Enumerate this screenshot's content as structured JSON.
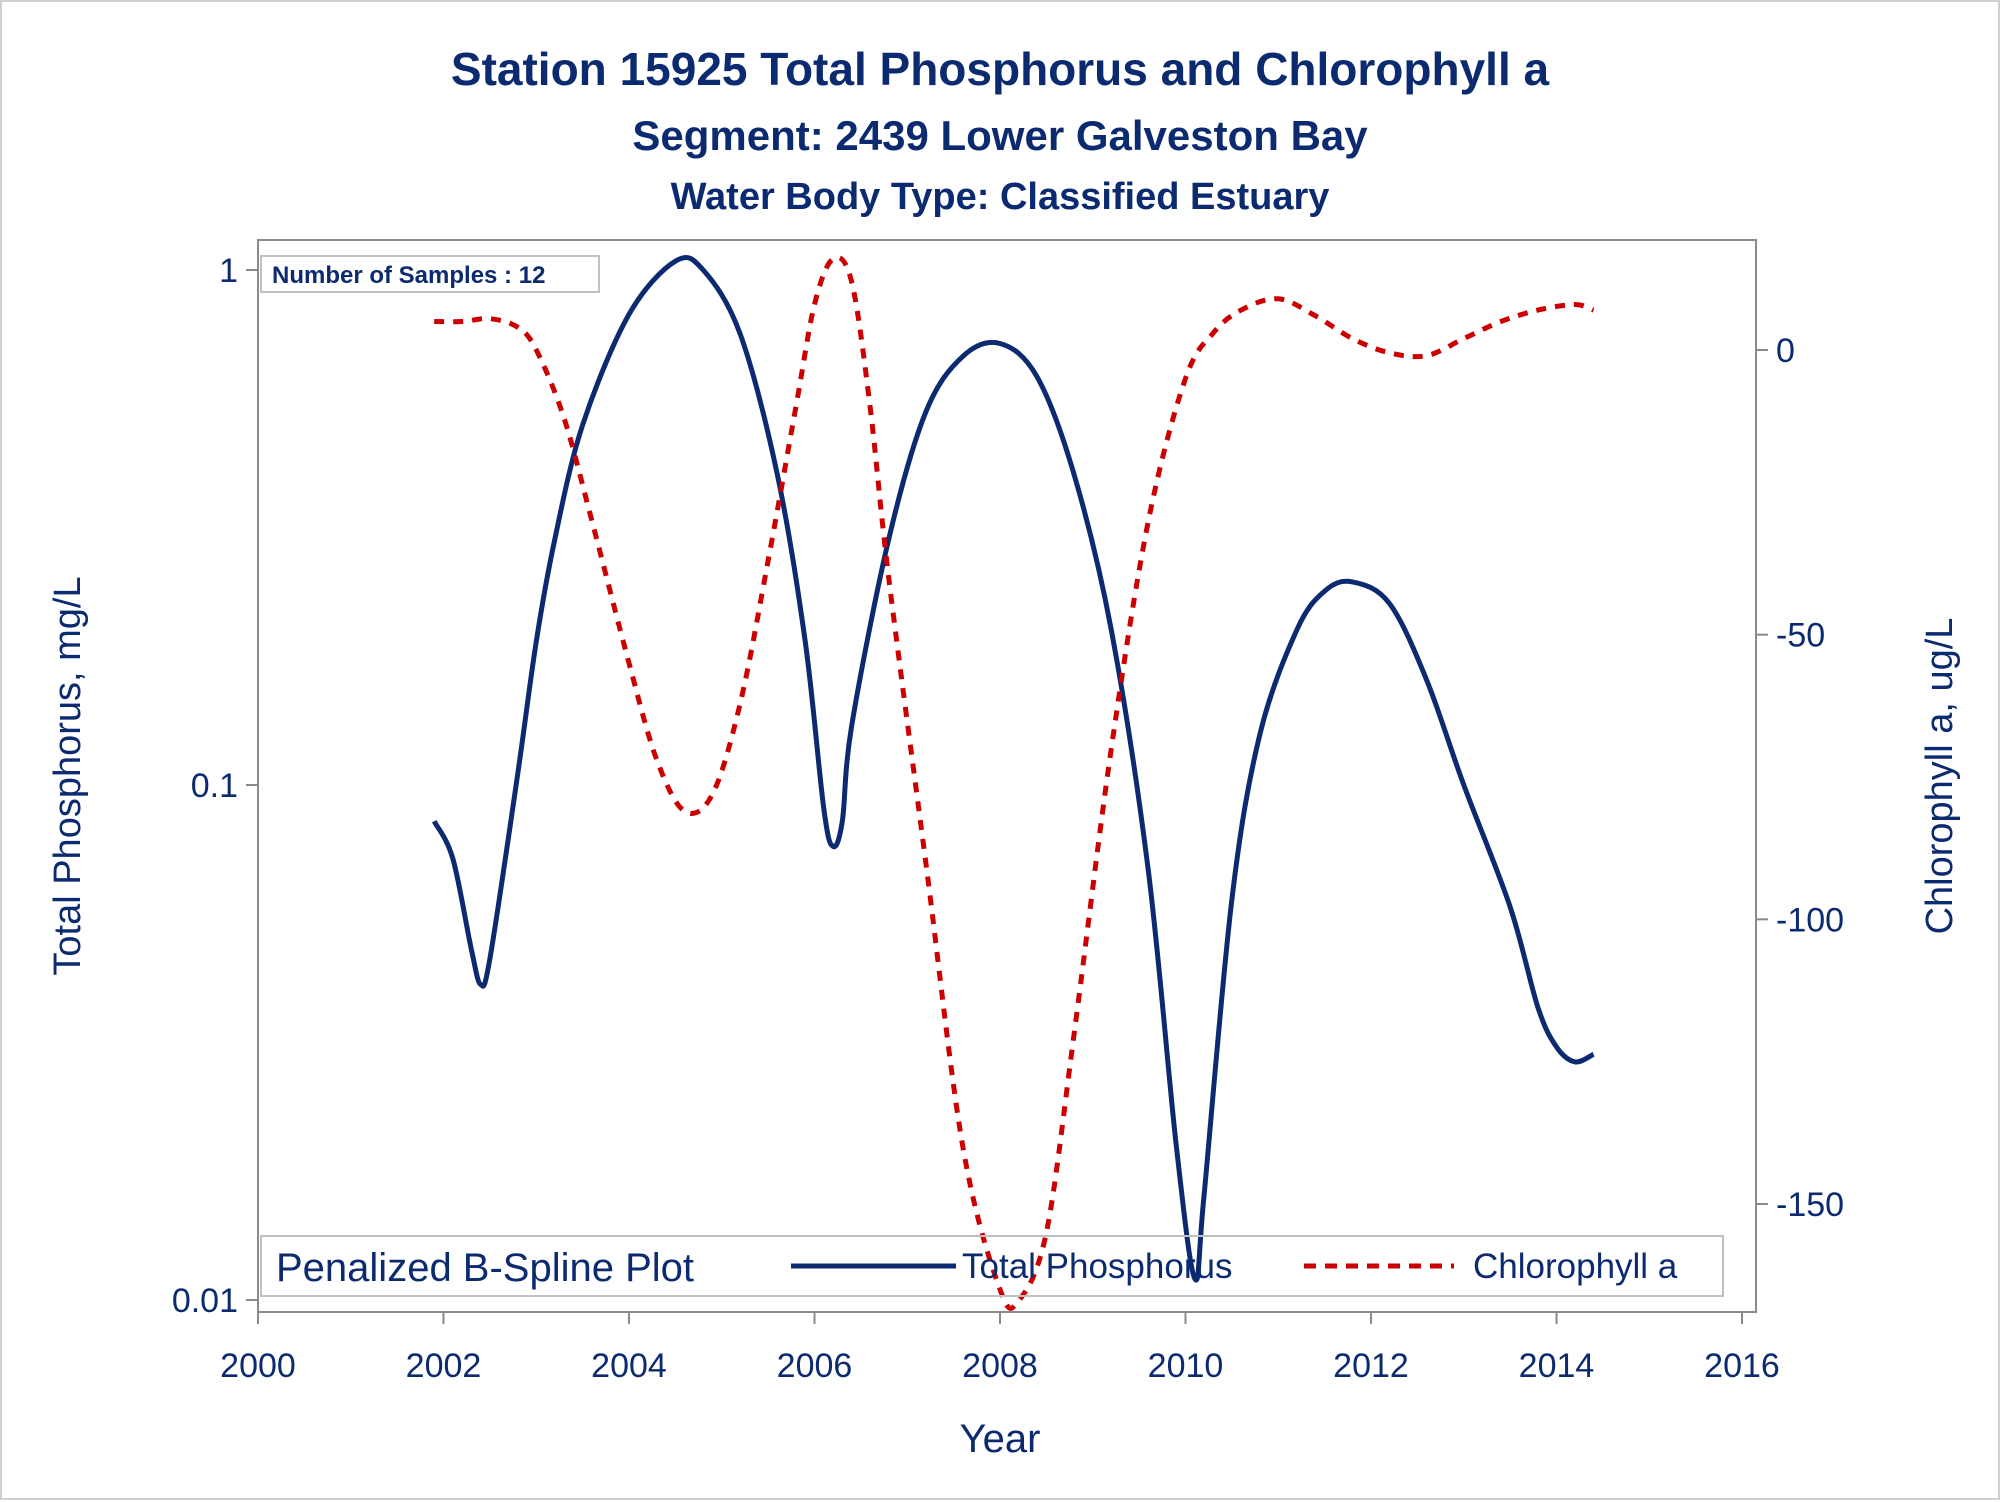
{
  "colors": {
    "text": "#0b2a6f",
    "phosphorus_line": "#0b2a6f",
    "chlorophyll_line": "#cc0000",
    "axis": "#8a8a8a",
    "legend_border": "#c0c0c0"
  },
  "chart_data": {
    "type": "line",
    "title": "Station 15925  Total Phosphorus and Chlorophyll a",
    "subtitle": "Segment: 2439  Lower Galveston Bay",
    "subtitle2": "Water Body Type: Classified Estuary",
    "xlabel": "Year",
    "ylabel_left": "Total Phosphorus, mg/L",
    "ylabel_right": "Chlorophyll a, ug/L",
    "xlim": [
      2000,
      2016
    ],
    "x_ticks": [
      "2000",
      "2002",
      "2004",
      "2006",
      "2008",
      "2010",
      "2012",
      "2014",
      "2016"
    ],
    "ylim_left": [
      0.01,
      1.0
    ],
    "y_scale_left": "log",
    "y_ticks_left": [
      "0.01",
      "0.1",
      "1"
    ],
    "ylim_right": [
      -167,
      17
    ],
    "y_ticks_right": [
      "-150",
      "-100",
      "-50",
      "0"
    ],
    "annotation": "Number of Samples : 12",
    "legend": {
      "title": "Penalized B-Spline Plot",
      "placement": "bottom",
      "entries": [
        "Total Phosphorus",
        "Chlorophyll a"
      ]
    },
    "series": [
      {
        "name": "Total Phosphorus",
        "axis": "left",
        "style": "solid",
        "x": [
          2001.9,
          2002.1,
          2002.3,
          2002.4,
          2002.5,
          2002.8,
          2003.0,
          2003.2,
          2003.5,
          2004.0,
          2004.5,
          2004.8,
          2005.2,
          2005.6,
          2005.9,
          2006.1,
          2006.2,
          2006.3,
          2006.4,
          2006.8,
          2007.2,
          2007.6,
          2008.0,
          2008.4,
          2008.8,
          2009.2,
          2009.6,
          2009.9,
          2010.1,
          2010.2,
          2010.5,
          2010.8,
          2011.2,
          2011.5,
          2011.8,
          2012.2,
          2012.6,
          2013.0,
          2013.5,
          2013.8,
          2014.0,
          2014.2,
          2014.4
        ],
        "y": [
          0.085,
          0.072,
          0.048,
          0.041,
          0.046,
          0.105,
          0.19,
          0.3,
          0.5,
          0.82,
          1.04,
          1.0,
          0.75,
          0.4,
          0.19,
          0.09,
          0.076,
          0.085,
          0.13,
          0.3,
          0.53,
          0.68,
          0.72,
          0.62,
          0.4,
          0.2,
          0.068,
          0.02,
          0.011,
          0.016,
          0.06,
          0.125,
          0.2,
          0.238,
          0.248,
          0.225,
          0.16,
          0.1,
          0.058,
          0.037,
          0.031,
          0.029,
          0.03
        ]
      },
      {
        "name": "Chlorophyll a",
        "axis": "right",
        "style": "dashed",
        "x": [
          2001.9,
          2002.2,
          2002.5,
          2002.8,
          2003.0,
          2003.3,
          2003.6,
          2004.0,
          2004.3,
          2004.6,
          2004.9,
          2005.2,
          2005.5,
          2005.8,
          2006.0,
          2006.2,
          2006.4,
          2006.6,
          2006.8,
          2007.2,
          2007.6,
          2008.0,
          2008.2,
          2008.5,
          2008.8,
          2009.2,
          2009.6,
          2010.0,
          2010.3,
          2010.6,
          2011.0,
          2011.4,
          2011.8,
          2012.2,
          2012.6,
          2013.0,
          2013.4,
          2013.8,
          2014.2,
          2014.4
        ],
        "y": [
          5,
          5,
          5.5,
          4,
          0,
          -12,
          -30,
          -55,
          -72,
          -81,
          -78,
          -62,
          -37,
          -10,
          8,
          16,
          12,
          -10,
          -40,
          -90,
          -140,
          -165,
          -167,
          -155,
          -120,
          -70,
          -30,
          -5,
          3,
          7,
          9,
          6,
          2,
          -0.5,
          -1,
          2,
          5,
          7,
          8,
          7
        ]
      }
    ]
  }
}
